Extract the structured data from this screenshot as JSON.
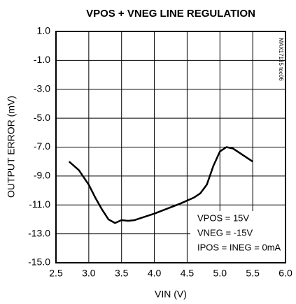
{
  "chart_data": {
    "type": "line",
    "title": "VPOS + VNEG LINE REGULATION",
    "x_label": "VIN (V)",
    "y_label": "OUTPUT ERROR (mV)",
    "side_note": "MAX17135 toc06",
    "annotations": [
      "VPOS = 15V",
      "VNEG = -15V",
      "IPOS = INEG = 0mA"
    ],
    "x": [
      2.7,
      2.85,
      3.0,
      3.1,
      3.2,
      3.3,
      3.4,
      3.5,
      3.6,
      3.7,
      3.8,
      4.0,
      4.2,
      4.4,
      4.6,
      4.7,
      4.8,
      4.9,
      5.0,
      5.1,
      5.2,
      5.5
    ],
    "series": [
      {
        "color": "#000000",
        "values": [
          -8.0,
          -8.6,
          -9.6,
          -10.5,
          -11.3,
          -12.0,
          -12.25,
          -12.05,
          -12.1,
          -12.05,
          -11.9,
          -11.6,
          -11.25,
          -10.9,
          -10.5,
          -10.2,
          -9.6,
          -8.3,
          -7.3,
          -7.0,
          -7.1,
          -8.0
        ]
      }
    ],
    "xlim": [
      2.5,
      6.0
    ],
    "xticks": [
      2.5,
      {
        "value": 3,
        "label": "3.0"
      },
      3.5,
      {
        "value": 4,
        "label": "4.0"
      },
      4.5,
      {
        "value": 5,
        "label": "5.0"
      },
      5.5,
      {
        "value": 6,
        "label": "6.0"
      }
    ],
    "ylim": [
      -15,
      1
    ],
    "yticks": [
      {
        "value": 1,
        "label": "1.0"
      },
      {
        "value": -1,
        "label": "-1.0"
      },
      {
        "value": -3,
        "label": "-3.0"
      },
      {
        "value": -5,
        "label": "-5.0"
      },
      {
        "value": -7,
        "label": "-7.0"
      },
      {
        "value": -9,
        "label": "-9.0"
      },
      {
        "value": -11,
        "label": "-11.0"
      },
      {
        "value": -13,
        "label": "-13.0"
      },
      {
        "value": -15,
        "label": "-15.0"
      }
    ],
    "grid": true
  }
}
